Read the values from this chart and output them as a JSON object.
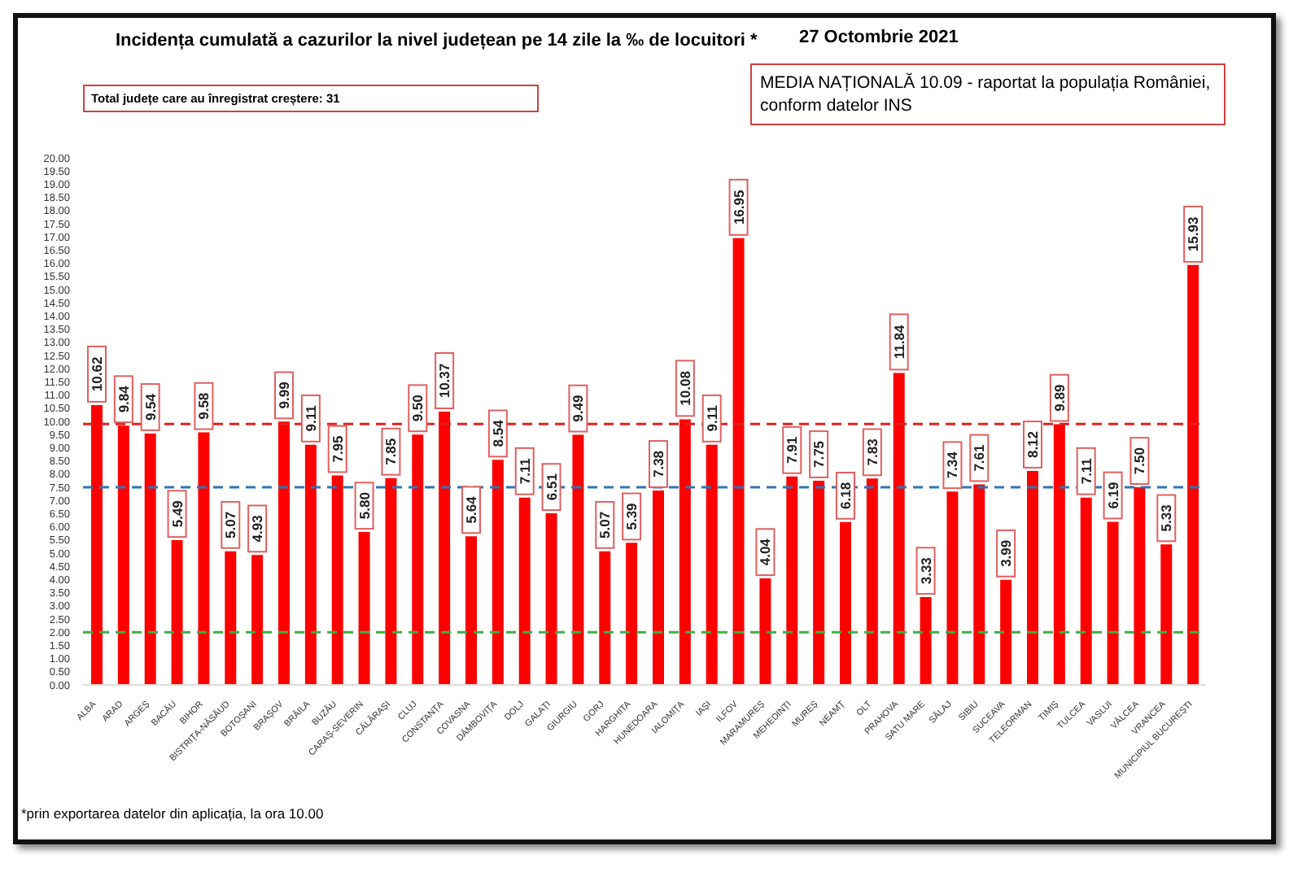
{
  "chart_data": {
    "type": "bar",
    "title": "Incidența cumulată a cazurilor la nivel județean pe 14 zile la ‰ de locuitori *",
    "subtitle": "27 Octombrie 2021",
    "annotations": [
      "Total județe care au înregistrat creștere:  31",
      "MEDIA NAȚIONALĂ 10.09 -  raportat la populația României, conform datelor INS",
      "*prin exportarea datelor din aplicația, la ora 10.00"
    ],
    "categories": [
      "ALBA",
      "ARAD",
      "ARGEȘ",
      "BACĂU",
      "BIHOR",
      "BISTRIȚA-NĂSĂUD",
      "BOTOȘANI",
      "BRAȘOV",
      "BRĂILA",
      "BUZĂU",
      "CARAȘ-SEVERIN",
      "CĂLĂRAȘI",
      "CLUJ",
      "CONSTANȚA",
      "COVASNA",
      "DÂMBOVIȚA",
      "DOLJ",
      "GALAȚI",
      "GIURGIU",
      "GORJ",
      "HARGHITA",
      "HUNEDOARA",
      "IALOMIȚA",
      "IAȘI",
      "ILFOV",
      "MARAMUREȘ",
      "MEHEDINȚI",
      "MUREȘ",
      "NEAMȚ",
      "OLT",
      "PRAHOVA",
      "SATU MARE",
      "SĂLAJ",
      "SIBIU",
      "SUCEAVA",
      "TELEORMAN",
      "TIMIȘ",
      "TULCEA",
      "VASLUI",
      "VÂLCEA",
      "VRANCEA",
      "MUNICIPIUL BUCUREȘTI"
    ],
    "values": [
      10.62,
      9.84,
      9.54,
      5.49,
      9.58,
      5.07,
      4.93,
      9.99,
      9.11,
      7.95,
      5.8,
      7.85,
      9.5,
      10.37,
      5.64,
      8.54,
      7.11,
      6.51,
      9.49,
      5.07,
      5.39,
      7.38,
      10.08,
      9.11,
      16.95,
      4.04,
      7.91,
      7.75,
      6.18,
      7.83,
      11.84,
      3.33,
      7.34,
      7.61,
      3.99,
      8.12,
      9.89,
      7.11,
      6.19,
      7.5,
      5.33,
      15.93
    ],
    "value_labels": [
      "10.62",
      "9.84",
      "9.54",
      "5.49",
      "9.58",
      "5.07",
      "4.93",
      "9.99",
      "9.11",
      "7.95",
      "5.80",
      "7.85",
      "9.50",
      "10.37",
      "5.64",
      "8.54",
      "7.11",
      "6.51",
      "9.49",
      "5.07",
      "5.39",
      "7.38",
      "10.08",
      "9.11",
      "16.95",
      "4.04",
      "7.91",
      "7.75",
      "6.18",
      "7.83",
      "11.84",
      "3.33",
      "7.34",
      "7.61",
      "3.99",
      "8.12",
      "9.89",
      "7.11",
      "6.19",
      "7.50",
      "5.33",
      "15.93"
    ],
    "color": "#ff0000",
    "ylim": [
      0,
      20
    ],
    "yticks": [
      {
        "value": 0,
        "label": "0.00"
      },
      {
        "value": 0.5,
        "label": "0.50"
      },
      {
        "value": 1,
        "label": "1.00"
      },
      {
        "value": 1.5,
        "label": "1.50"
      },
      {
        "value": 2,
        "label": "2.00"
      },
      {
        "value": 2.5,
        "label": "2.50"
      },
      {
        "value": 3,
        "label": "3.00"
      },
      {
        "value": 3.5,
        "label": "3.50"
      },
      {
        "value": 4,
        "label": "4.00"
      },
      {
        "value": 4.5,
        "label": "4.50"
      },
      {
        "value": 5,
        "label": "5.00"
      },
      {
        "value": 5.5,
        "label": "5.50"
      },
      {
        "value": 6,
        "label": "6.00"
      },
      {
        "value": 6.5,
        "label": "6.50"
      },
      {
        "value": 7,
        "label": "7.00"
      },
      {
        "value": 7.5,
        "label": "7.50"
      },
      {
        "value": 8,
        "label": "8.00"
      },
      {
        "value": 8.5,
        "label": "8.50"
      },
      {
        "value": 9,
        "label": "9.00"
      },
      {
        "value": 9.5,
        "label": "9.50"
      },
      {
        "value": 10,
        "label": "10.00"
      },
      {
        "value": 10.5,
        "label": "10.50"
      },
      {
        "value": 11,
        "label": "11.00"
      },
      {
        "value": 11.5,
        "label": "11.50"
      },
      {
        "value": 12,
        "label": "12.00"
      },
      {
        "value": 12.5,
        "label": "12.50"
      },
      {
        "value": 13,
        "label": "13.00"
      },
      {
        "value": 13.5,
        "label": "13.50"
      },
      {
        "value": 14,
        "label": "14.00"
      },
      {
        "value": 14.5,
        "label": "14.50"
      },
      {
        "value": 15,
        "label": "15.00"
      },
      {
        "value": 15.5,
        "label": "15.50"
      },
      {
        "value": 16,
        "label": "16.00"
      },
      {
        "value": 16.5,
        "label": "16.50"
      },
      {
        "value": 17,
        "label": "17.00"
      },
      {
        "value": 17.5,
        "label": "17.50"
      },
      {
        "value": 18,
        "label": "18.00"
      },
      {
        "value": 18.5,
        "label": "18.50"
      },
      {
        "value": 19,
        "label": "19.00"
      },
      {
        "value": 19.5,
        "label": "19.50"
      },
      {
        "value": 20,
        "label": "20.00"
      }
    ],
    "ref_lines": [
      {
        "axis": "y",
        "value": 9.9,
        "color": "#e02020",
        "line_style": "dashed"
      },
      {
        "axis": "y",
        "value": 7.5,
        "color": "#2e75b6",
        "line_style": "dashed"
      },
      {
        "axis": "y",
        "value": 2,
        "color": "#3cb043",
        "line_style": "dashed"
      }
    ],
    "grid": false,
    "legend": false
  }
}
